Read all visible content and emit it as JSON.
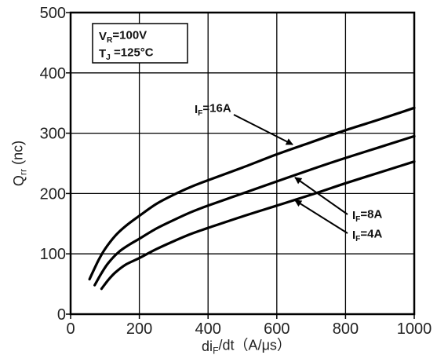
{
  "chart_data": {
    "type": "line",
    "xlabel": {
      "main": "di",
      "sub": "F",
      "rest": "/dt（A/μs）"
    },
    "ylabel": {
      "main": "Q",
      "sub": "rr",
      "rest": " (nc)"
    },
    "xlim": [
      0,
      1000
    ],
    "ylim": [
      0,
      500
    ],
    "xticks": [
      0,
      200,
      400,
      600,
      800,
      1000
    ],
    "yticks": [
      0,
      100,
      200,
      300,
      400,
      500
    ],
    "grid": true,
    "conditions": [
      {
        "main": "V",
        "sub": "R",
        "rest": "=100V"
      },
      {
        "main": "T",
        "sub": "J",
        "rest": " =125°C"
      }
    ],
    "series": [
      {
        "name": "I_F=16A",
        "label": {
          "main": "I",
          "sub": "F",
          "rest": "=16A"
        },
        "x": [
          55,
          80,
          100,
          130,
          160,
          200,
          250,
          300,
          350,
          400,
          500,
          600,
          700,
          800,
          900,
          1000
        ],
        "y": [
          58,
          88,
          108,
          130,
          146,
          163,
          183,
          198,
          211,
          222,
          243,
          265,
          285,
          305,
          323,
          342
        ]
      },
      {
        "name": "I_F=8A",
        "label": {
          "main": "I",
          "sub": "F",
          "rest": "=8A"
        },
        "x": [
          70,
          90,
          110,
          140,
          170,
          200,
          250,
          300,
          350,
          400,
          500,
          600,
          700,
          800,
          900,
          1000
        ],
        "y": [
          48,
          68,
          85,
          103,
          115,
          125,
          142,
          156,
          169,
          180,
          200,
          220,
          240,
          259,
          277,
          295
        ]
      },
      {
        "name": "I_F=4A",
        "label": {
          "main": "I",
          "sub": "F",
          "rest": "=4A"
        },
        "x": [
          90,
          110,
          130,
          160,
          200,
          250,
          300,
          350,
          400,
          500,
          600,
          700,
          800,
          900,
          1000
        ],
        "y": [
          42,
          57,
          69,
          82,
          93,
          108,
          121,
          133,
          143,
          162,
          180,
          198,
          217,
          235,
          253
        ]
      }
    ]
  }
}
